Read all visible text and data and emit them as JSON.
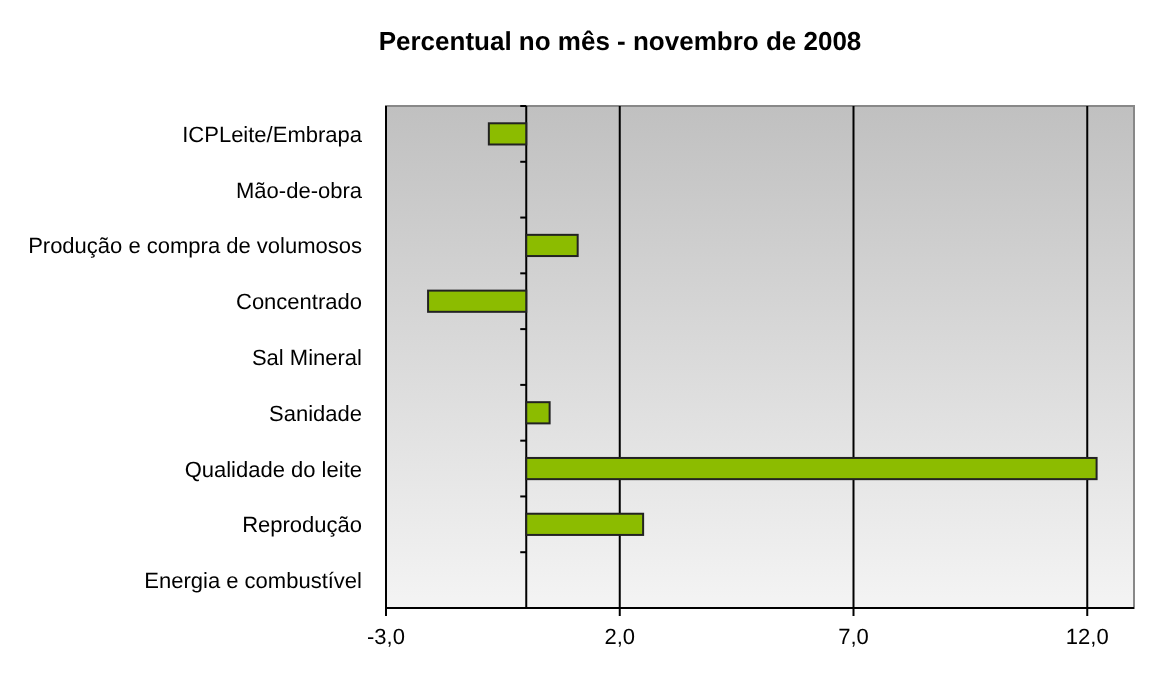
{
  "chart_data": {
    "type": "bar",
    "orientation": "horizontal",
    "title": "Percentual no mês - novembro de 2008",
    "categories": [
      "ICPLeite/Embrapa",
      "Mão-de-obra",
      "Produção e compra de volumosos",
      "Concentrado",
      "Sal Mineral",
      "Sanidade",
      "Qualidade do leite",
      "Reprodução",
      "Energia e combustível"
    ],
    "values": [
      -0.8,
      0,
      1.1,
      -2.1,
      0,
      0.5,
      12.2,
      2.5,
      0
    ],
    "color": "#8cbc00",
    "xlim": [
      -3,
      13
    ],
    "xticks": [
      {
        "value": -3,
        "label": "-3,0"
      },
      {
        "value": 2,
        "label": "2,0"
      },
      {
        "value": 7,
        "label": "7,0"
      },
      {
        "value": 12,
        "label": "12,0"
      }
    ],
    "grid": "x"
  }
}
